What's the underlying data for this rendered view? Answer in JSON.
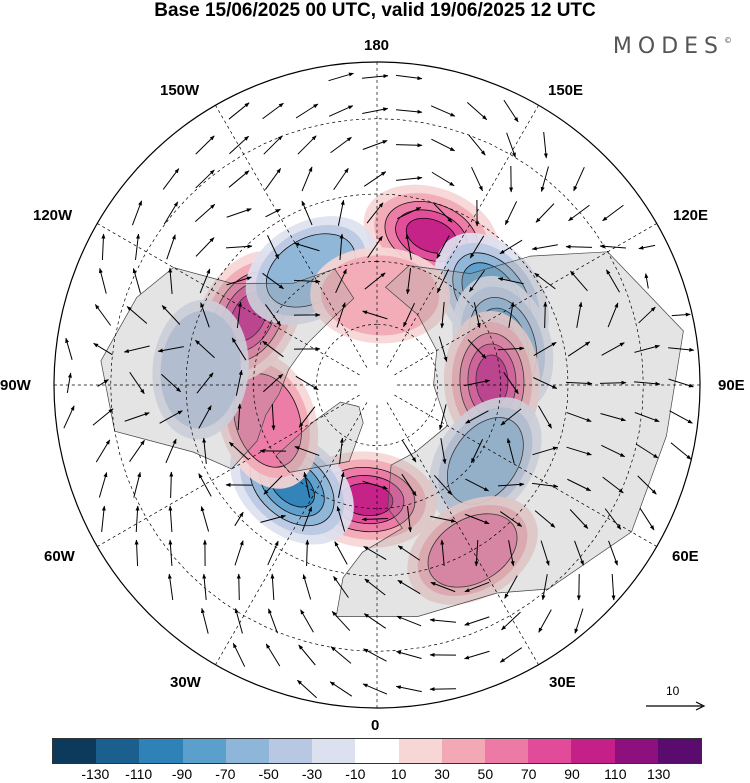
{
  "title": "Base 15/06/2025 00 UTC, valid 19/06/2025 12 UTC",
  "brand": {
    "name": "MODES",
    "mark": "©"
  },
  "longitude_labels": {
    "top": "180",
    "bottom": "0",
    "left": "90W",
    "right": "90E",
    "nw1": "150W",
    "nw2": "120W",
    "ne1": "150E",
    "ne2": "120E",
    "sw1": "60W",
    "sw2": "30W",
    "se1": "60E",
    "se2": "30E"
  },
  "reference_vector": {
    "label": "10"
  },
  "colorbar": {
    "colors": [
      "#0c3a5c",
      "#1b5f8f",
      "#2f82b8",
      "#5b9fcc",
      "#8eb6d8",
      "#b8c8e2",
      "#dde1ef",
      "#ffffff",
      "#f7d6d6",
      "#f2a9b5",
      "#ec7aa5",
      "#e24b9a",
      "#c42088",
      "#8e0f7e",
      "#5a0b6e"
    ],
    "labels": [
      "-130",
      "-110",
      "-90",
      "-70",
      "-50",
      "-30",
      "-10",
      "10",
      "30",
      "50",
      "70",
      "90",
      "110",
      "130"
    ]
  },
  "map": {
    "projection": "north-polar-stereographic",
    "field": "anomaly shading with wind vectors",
    "anomalies": [
      {
        "lon": 160,
        "lat": 52,
        "value": 85
      },
      {
        "lon": 128,
        "lat": 55,
        "value": -70
      },
      {
        "lon": 108,
        "lat": 58,
        "value": -85
      },
      {
        "lon": 92,
        "lat": 62,
        "value": 90
      },
      {
        "lon": 55,
        "lat": 58,
        "value": -55
      },
      {
        "lon": 30,
        "lat": 45,
        "value": 55
      },
      {
        "lon": -5,
        "lat": 62,
        "value": 95
      },
      {
        "lon": -40,
        "lat": 58,
        "value": -95
      },
      {
        "lon": -72,
        "lat": 62,
        "value": 45
      },
      {
        "lon": -118,
        "lat": 55,
        "value": 90
      },
      {
        "lon": -150,
        "lat": 58,
        "value": -50
      },
      {
        "lon": 178,
        "lat": 68,
        "value": 30
      },
      {
        "lon": -95,
        "lat": 48,
        "value": -35
      }
    ]
  }
}
